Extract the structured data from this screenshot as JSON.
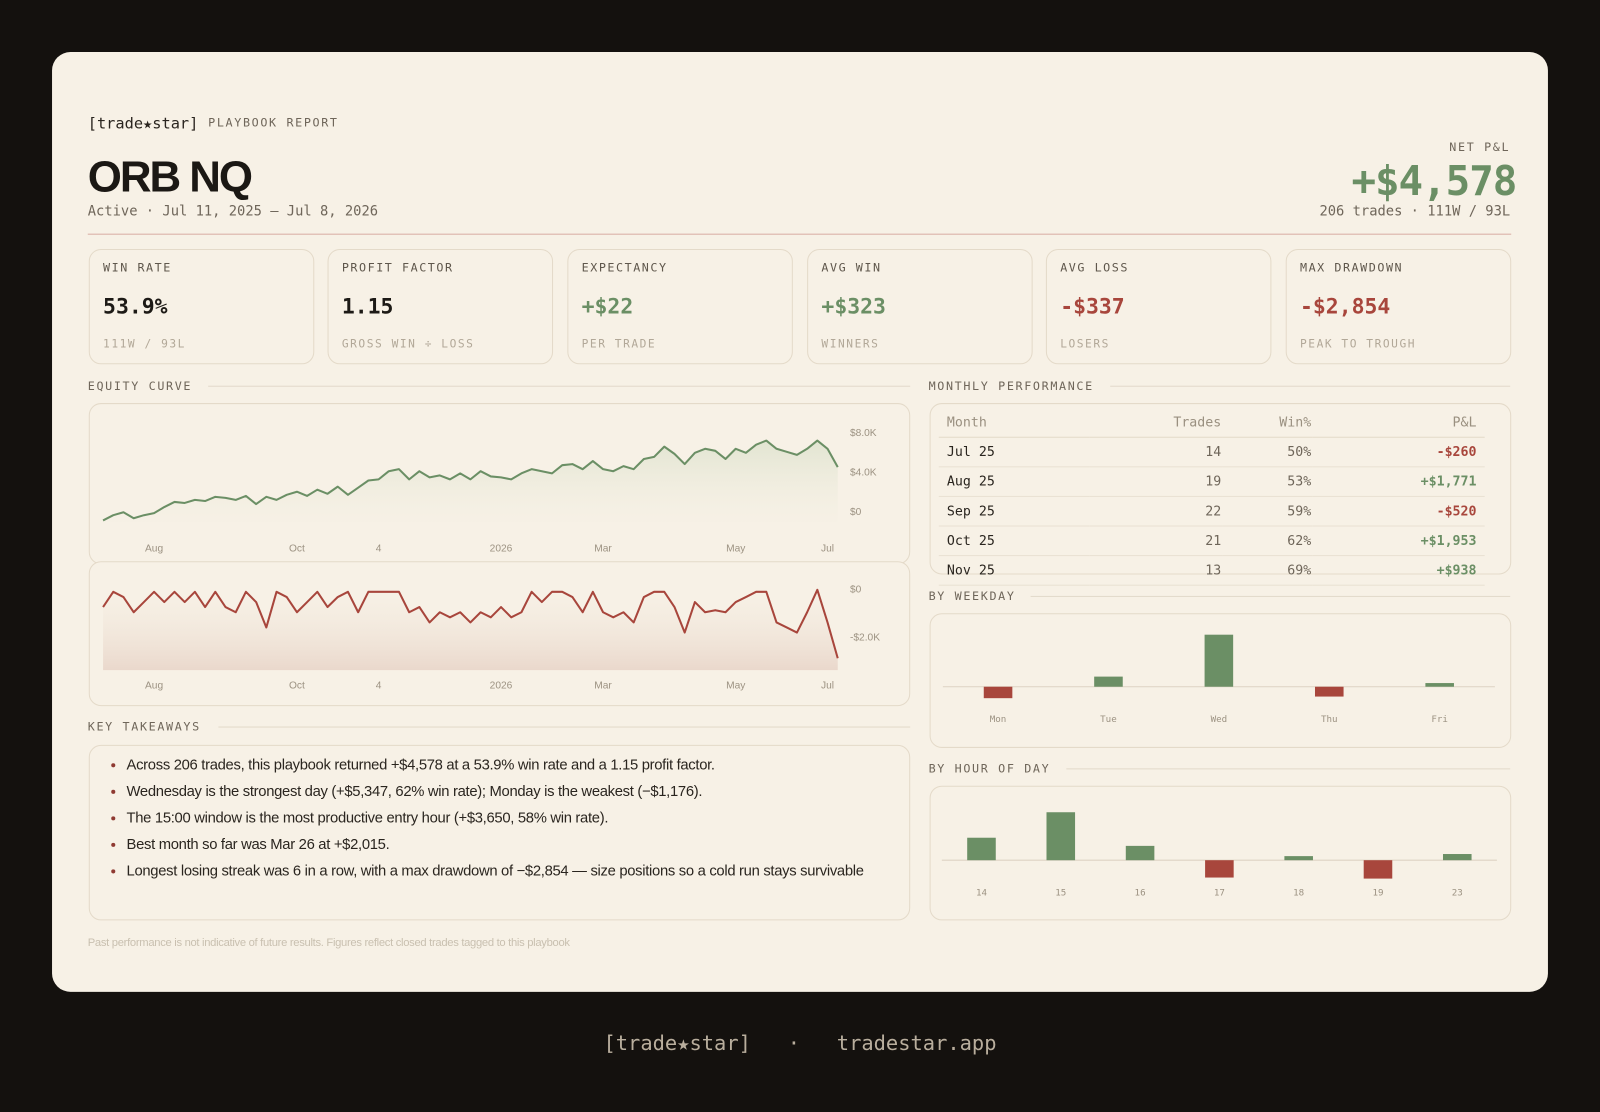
{
  "header": {
    "brand": "[trade★star]",
    "report_label": "PLAYBOOK REPORT",
    "title": "ORB NQ",
    "status": "Active · Jul 11, 2025 – Jul 8, 2026",
    "net_label": "NET P&L",
    "net_value": "+$4,578",
    "net_sub": "206 trades · 111W / 93L",
    "net_color": "#6b8f65"
  },
  "kpis": [
    {
      "label": "WIN RATE",
      "value": "53.9%",
      "sub": "111W / 93L",
      "color": "#1d1a16"
    },
    {
      "label": "PROFIT FACTOR",
      "value": "1.15",
      "sub": "GROSS WIN ÷ LOSS",
      "color": "#1d1a16"
    },
    {
      "label": "EXPECTANCY",
      "value": "+$22",
      "sub": "PER TRADE",
      "color": "#6b8f65"
    },
    {
      "label": "AVG WIN",
      "value": "+$323",
      "sub": "WINNERS",
      "color": "#6b8f65"
    },
    {
      "label": "AVG LOSS",
      "value": "-$337",
      "sub": "LOSERS",
      "color": "#a8463c"
    },
    {
      "label": "MAX DRAWDOWN",
      "value": "-$2,854",
      "sub": "PEAK TO TROUGH",
      "color": "#a8463c"
    }
  ],
  "chart_data": [
    {
      "type": "line",
      "title": "EQUITY CURVE",
      "color": "#6b8f65",
      "xlim": [
        0,
        72
      ],
      "xticks": [
        {
          "value": 5,
          "label": "Aug"
        },
        {
          "value": 19,
          "label": "Oct"
        },
        {
          "value": 27,
          "label": "4"
        },
        {
          "value": 39,
          "label": "2026"
        },
        {
          "value": 49,
          "label": "Mar"
        },
        {
          "value": 62,
          "label": "May"
        },
        {
          "value": 71,
          "label": "Jul"
        }
      ],
      "ylim": [
        -1000,
        8500
      ],
      "yticks": [
        {
          "value": 0,
          "label": "$0"
        },
        {
          "value": 4000,
          "label": "$4.0K"
        },
        {
          "value": 8000,
          "label": "$8.0K"
        }
      ],
      "values": [
        -830,
        -310,
        0,
        -620,
        -310,
        -100,
        520,
        1040,
        940,
        1250,
        1140,
        1560,
        1460,
        1250,
        1660,
        830,
        1560,
        1250,
        1770,
        2080,
        1660,
        2290,
        1870,
        2600,
        1770,
        2500,
        3220,
        3330,
        4160,
        4370,
        3330,
        4160,
        3540,
        3740,
        3330,
        3950,
        3330,
        4160,
        3640,
        3540,
        3330,
        3950,
        4370,
        4160,
        3950,
        4780,
        4890,
        4370,
        5200,
        4370,
        4160,
        4680,
        4370,
        5410,
        5620,
        6660,
        5930,
        4890,
        6030,
        6450,
        6240,
        5410,
        6450,
        6030,
        6860,
        7280,
        6450,
        6140,
        5820,
        6450,
        7280,
        6450,
        4578
      ]
    },
    {
      "type": "line",
      "color": "#a8463c",
      "xlim": [
        0,
        72
      ],
      "xticks": [
        {
          "value": 5,
          "label": "Aug"
        },
        {
          "value": 19,
          "label": "Oct"
        },
        {
          "value": 27,
          "label": "4"
        },
        {
          "value": 39,
          "label": "2026"
        },
        {
          "value": 49,
          "label": "Mar"
        },
        {
          "value": 62,
          "label": "May"
        },
        {
          "value": 71,
          "label": "Jul"
        }
      ],
      "ylim": [
        -3350,
        350
      ],
      "yticks": [
        {
          "value": 0,
          "label": "$0"
        },
        {
          "value": -2000,
          "label": "-$2.0K"
        }
      ],
      "values": [
        -720,
        -85,
        -300,
        -935,
        -510,
        -85,
        -510,
        -85,
        -510,
        -85,
        -720,
        -85,
        -720,
        -935,
        -85,
        -510,
        -1570,
        -85,
        -300,
        -935,
        -510,
        -85,
        -720,
        -300,
        -85,
        -935,
        -85,
        -85,
        -85,
        -85,
        -935,
        -720,
        -1360,
        -935,
        -1150,
        -935,
        -1360,
        -935,
        -1150,
        -720,
        -1150,
        -935,
        -85,
        -510,
        -85,
        -85,
        -300,
        -935,
        -85,
        -935,
        -1150,
        -935,
        -1360,
        -300,
        -85,
        -85,
        -720,
        -1785,
        -510,
        -935,
        -850,
        -935,
        -510,
        -300,
        -85,
        -85,
        -1360,
        -1570,
        -1785,
        -935,
        0,
        -1360,
        -2854
      ]
    },
    {
      "type": "bar",
      "title": "BY WEEKDAY",
      "categories": [
        "Mon",
        "Tue",
        "Wed",
        "Thu",
        "Fri"
      ],
      "values": [
        -1176,
        1040,
        5347,
        -1010,
        377
      ],
      "color": "#6b8f65",
      "negative_color": "#a8463c"
    },
    {
      "type": "bar",
      "title": "BY HOUR OF DAY",
      "categories": [
        "14",
        "15",
        "16",
        "17",
        "18",
        "19",
        "23"
      ],
      "values": [
        1710,
        3650,
        1090,
        -1320,
        310,
        -1400,
        470
      ],
      "color": "#6b8f65",
      "negative_color": "#a8463c"
    }
  ],
  "monthly": {
    "title": "MONTHLY PERFORMANCE",
    "columns": [
      "Month",
      "Trades",
      "Win%",
      "P&L"
    ],
    "rows": [
      [
        "Jul 25",
        14,
        "50%",
        "-$260"
      ],
      [
        "Aug 25",
        19,
        "53%",
        "+$1,771"
      ],
      [
        "Sep 25",
        22,
        "59%",
        "-$520"
      ],
      [
        "Oct 25",
        21,
        "62%",
        "+$1,953"
      ],
      [
        "Nov 25",
        13,
        "69%",
        "+$938"
      ]
    ],
    "positive_color": "#6b8f65",
    "negative_color": "#a8463c"
  },
  "takeaways": {
    "title": "KEY TAKEAWAYS",
    "items": [
      "Across 206 trades, this playbook returned +$4,578 at a 53.9% win rate and a 1.15 profit factor.",
      "Wednesday is the strongest day (+$5,347, 62% win rate); Monday is the weakest (−$1,176).",
      "The 15:00 window is the most productive entry hour (+$3,650, 58% win rate).",
      "Best month so far was Mar 26 at +$2,015.",
      "Longest losing streak was 6 in a row, with a max drawdown of −$2,854 — size positions so a cold run stays survivable"
    ]
  },
  "footnote": "Past performance is not indicative of future results. Figures reflect closed trades tagged to this playbook",
  "footer": {
    "brand": "[trade★star]",
    "separator": "·",
    "site": "tradestar.app"
  }
}
